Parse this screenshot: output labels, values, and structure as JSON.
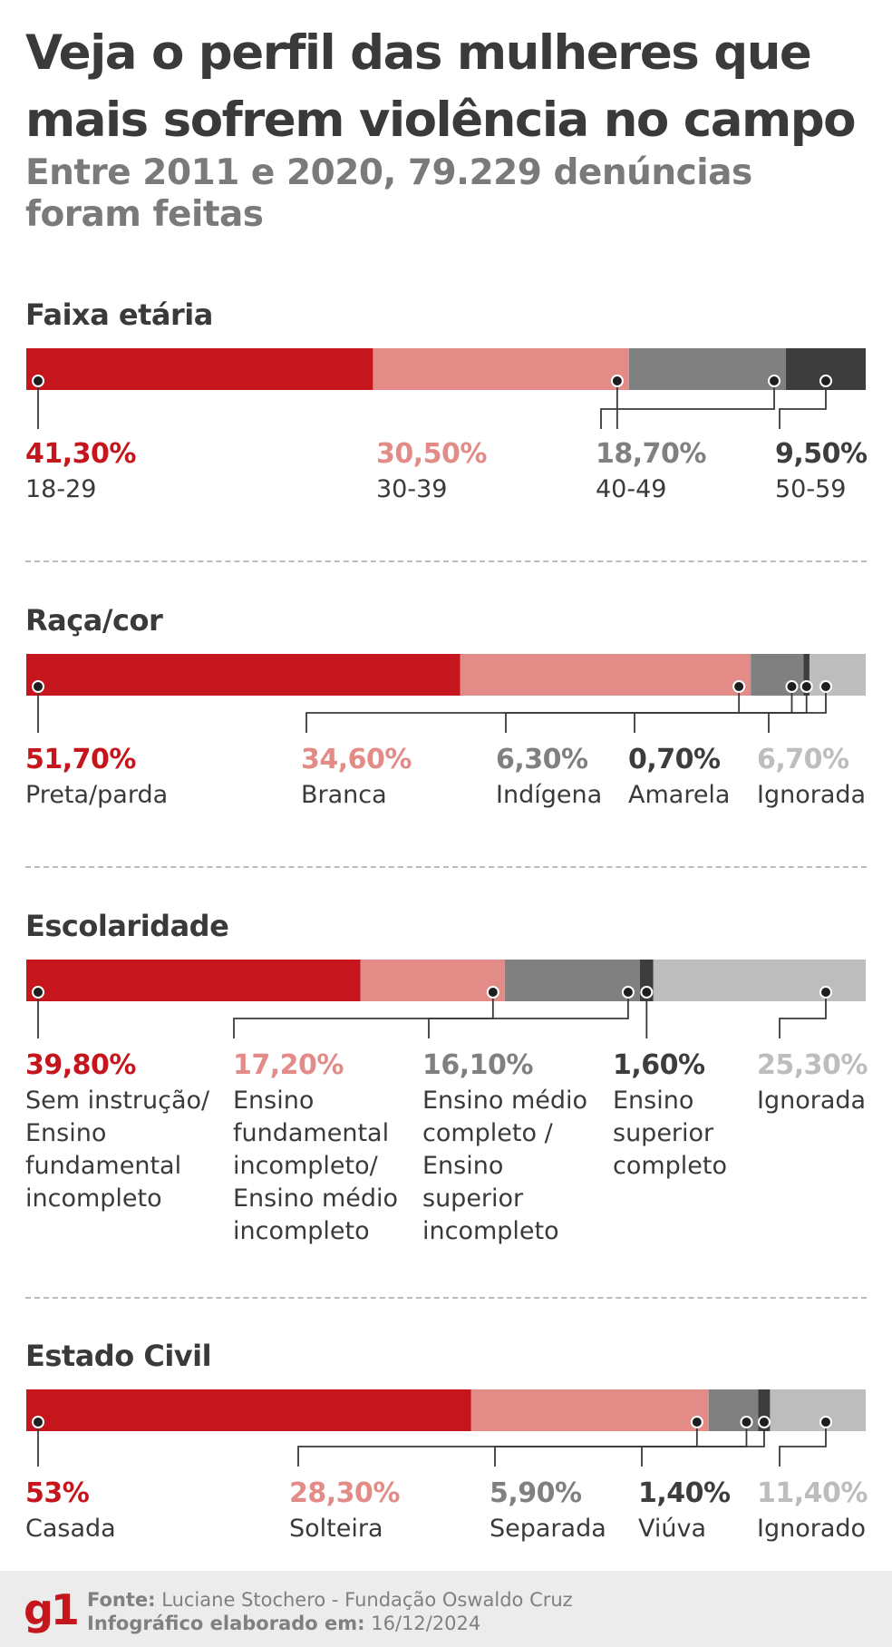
{
  "header": {
    "title": "Veja o perfil das mulheres que mais sofrem violência no campo",
    "subtitle": "Entre 2011 e 2020, 79.229 denúncias foram feitas"
  },
  "colors": {
    "red": "#c4161c",
    "pink": "#e28b87",
    "gray": "#808080",
    "dark": "#3d3d3d",
    "light": "#bdbdbd"
  },
  "chart_data": [
    {
      "type": "bar",
      "stacked": true,
      "title": "Faixa etária",
      "categories": [
        "18-29",
        "30-39",
        "40-49",
        "50-59"
      ],
      "values": [
        41.3,
        30.5,
        18.7,
        9.5
      ],
      "value_labels": [
        "41,30%",
        "30,50%",
        "18,70%",
        "9,50%"
      ],
      "colors": [
        "#c4161c",
        "#e28b87",
        "#808080",
        "#3d3d3d"
      ]
    },
    {
      "type": "bar",
      "stacked": true,
      "title": "Raça/cor",
      "categories": [
        "Preta/parda",
        "Branca",
        "Indígena",
        "Amarela",
        "Ignorada"
      ],
      "values": [
        51.7,
        34.6,
        6.3,
        0.7,
        6.7
      ],
      "value_labels": [
        "51,70%",
        "34,60%",
        "6,30%",
        "0,70%",
        "6,70%"
      ],
      "colors": [
        "#c4161c",
        "#e28b87",
        "#808080",
        "#3d3d3d",
        "#bdbdbd"
      ]
    },
    {
      "type": "bar",
      "stacked": true,
      "title": "Escolaridade",
      "categories": [
        "Sem instrução/\nEnsino\nfundamental\nincompleto",
        "Ensino\nfundamental\nincompleto/\nEnsino médio\nincompleto",
        "Ensino médio\ncompleto /\nEnsino\nsuperior\nincompleto",
        "Ensino\nsuperior\ncompleto",
        "Ignorada"
      ],
      "values": [
        39.8,
        17.2,
        16.1,
        1.6,
        25.3
      ],
      "value_labels": [
        "39,80%",
        "17,20%",
        "16,10%",
        "1,60%",
        "25,30%"
      ],
      "colors": [
        "#c4161c",
        "#e28b87",
        "#808080",
        "#3d3d3d",
        "#bdbdbd"
      ]
    },
    {
      "type": "bar",
      "stacked": true,
      "title": "Estado Civil",
      "categories": [
        "Casada",
        "Solteira",
        "Separada",
        "Viúva",
        "Ignorado"
      ],
      "values": [
        53,
        28.3,
        5.9,
        1.4,
        11.4
      ],
      "value_labels": [
        "53%",
        "28,30%",
        "5,90%",
        "1,40%",
        "11,40%"
      ],
      "colors": [
        "#c4161c",
        "#e28b87",
        "#808080",
        "#3d3d3d",
        "#bdbdbd"
      ]
    }
  ],
  "footer": {
    "logo": "g1",
    "source_label": "Fonte:",
    "source_text": "Luciane Stochero - Fundação Oswaldo Cruz",
    "date_label": "Infográfico elaborado em:",
    "date_text": "16/12/2024"
  }
}
